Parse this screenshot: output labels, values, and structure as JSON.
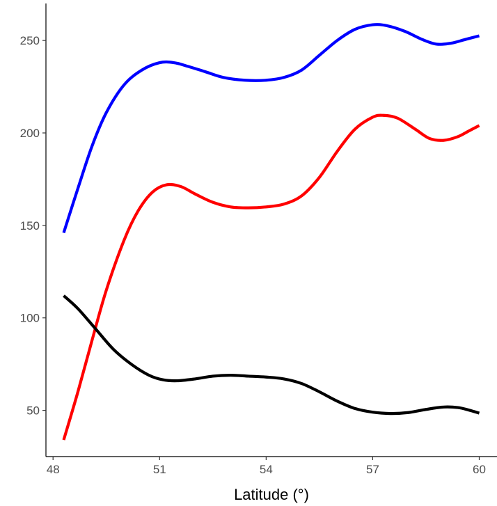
{
  "chart_data": {
    "type": "line",
    "title": "",
    "xlabel": "Latitude (°)",
    "ylabel": "",
    "xlim": [
      47.8,
      60.5
    ],
    "ylim": [
      25,
      270
    ],
    "x_ticks": [
      48,
      51,
      54,
      57,
      60
    ],
    "y_ticks": [
      50,
      100,
      150,
      200,
      250
    ],
    "grid": false,
    "legend": "none",
    "series": [
      {
        "color": "#0000ff",
        "points": [
          [
            48.3,
            146
          ],
          [
            48.7,
            170
          ],
          [
            49.1,
            193
          ],
          [
            49.5,
            211
          ],
          [
            50.0,
            226
          ],
          [
            50.5,
            234
          ],
          [
            51.0,
            238
          ],
          [
            51.4,
            238
          ],
          [
            51.8,
            236
          ],
          [
            52.3,
            233
          ],
          [
            52.8,
            230
          ],
          [
            53.4,
            228.5
          ],
          [
            54.0,
            228.5
          ],
          [
            54.5,
            230
          ],
          [
            55.0,
            234
          ],
          [
            55.5,
            242
          ],
          [
            56.0,
            250
          ],
          [
            56.5,
            256
          ],
          [
            57.0,
            258.5
          ],
          [
            57.4,
            258
          ],
          [
            57.9,
            255
          ],
          [
            58.4,
            250.5
          ],
          [
            58.8,
            248
          ],
          [
            59.2,
            248.5
          ],
          [
            59.6,
            250.5
          ],
          [
            60.0,
            252.5
          ]
        ]
      },
      {
        "color": "#ff0000",
        "points": [
          [
            48.3,
            34
          ],
          [
            48.7,
            60
          ],
          [
            49.1,
            88
          ],
          [
            49.5,
            115
          ],
          [
            50.0,
            142
          ],
          [
            50.4,
            158
          ],
          [
            50.8,
            168
          ],
          [
            51.2,
            172
          ],
          [
            51.6,
            171
          ],
          [
            52.0,
            167
          ],
          [
            52.5,
            162.5
          ],
          [
            53.0,
            160
          ],
          [
            53.5,
            159.5
          ],
          [
            54.0,
            160
          ],
          [
            54.5,
            161.5
          ],
          [
            55.0,
            166
          ],
          [
            55.5,
            176
          ],
          [
            56.0,
            190
          ],
          [
            56.5,
            202
          ],
          [
            57.0,
            208.5
          ],
          [
            57.3,
            209.5
          ],
          [
            57.7,
            208
          ],
          [
            58.2,
            202
          ],
          [
            58.6,
            197
          ],
          [
            59.0,
            196
          ],
          [
            59.4,
            198
          ],
          [
            59.7,
            201
          ],
          [
            60.0,
            204
          ]
        ]
      },
      {
        "color": "#000000",
        "points": [
          [
            48.3,
            112
          ],
          [
            48.7,
            105
          ],
          [
            49.2,
            94
          ],
          [
            49.7,
            83
          ],
          [
            50.2,
            75
          ],
          [
            50.7,
            69
          ],
          [
            51.1,
            66.5
          ],
          [
            51.5,
            66
          ],
          [
            52.0,
            67
          ],
          [
            52.5,
            68.5
          ],
          [
            53.0,
            69
          ],
          [
            53.5,
            68.5
          ],
          [
            54.0,
            68
          ],
          [
            54.5,
            67
          ],
          [
            55.0,
            64.5
          ],
          [
            55.5,
            60
          ],
          [
            56.0,
            55
          ],
          [
            56.5,
            51
          ],
          [
            57.0,
            49
          ],
          [
            57.5,
            48.3
          ],
          [
            58.0,
            48.8
          ],
          [
            58.5,
            50.5
          ],
          [
            59.0,
            51.8
          ],
          [
            59.4,
            51.5
          ],
          [
            59.7,
            50.2
          ],
          [
            60.0,
            48.5
          ]
        ]
      }
    ]
  }
}
